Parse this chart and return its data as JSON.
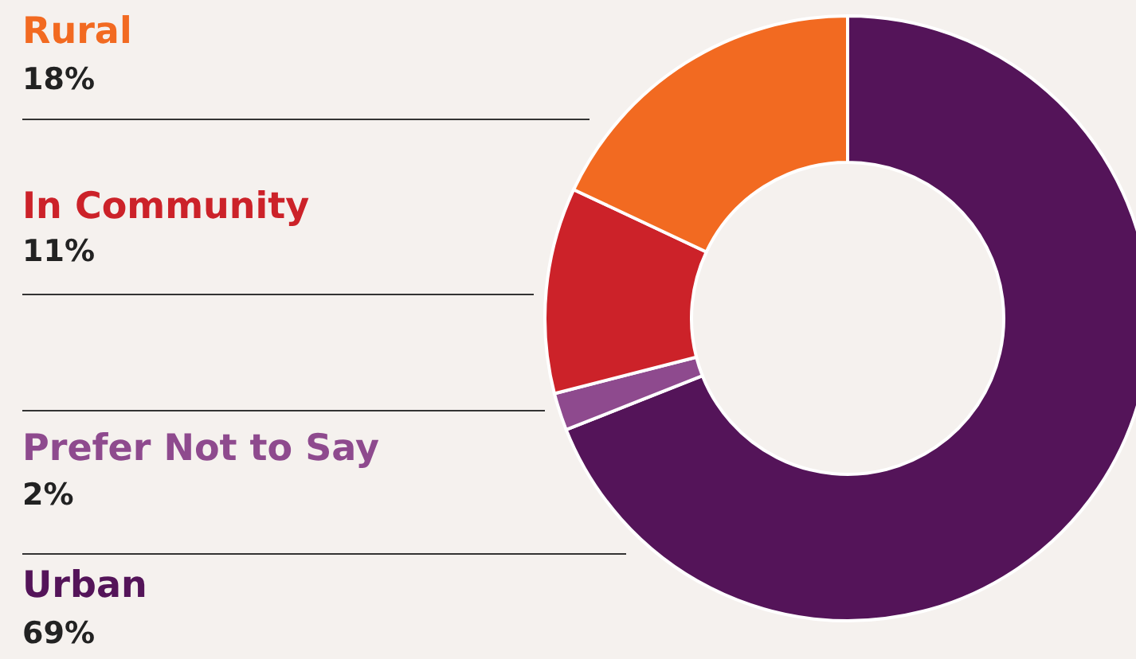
{
  "chart_data": {
    "type": "donut",
    "categories": [
      "Urban",
      "Prefer Not to Say",
      "In Community",
      "Rural"
    ],
    "values": [
      69,
      2,
      11,
      18
    ],
    "colors": [
      "#541459",
      "#8e4a8e",
      "#cc2229",
      "#f26a21"
    ],
    "value_labels": [
      "69%",
      "2%",
      "11%",
      "18%"
    ]
  }
}
